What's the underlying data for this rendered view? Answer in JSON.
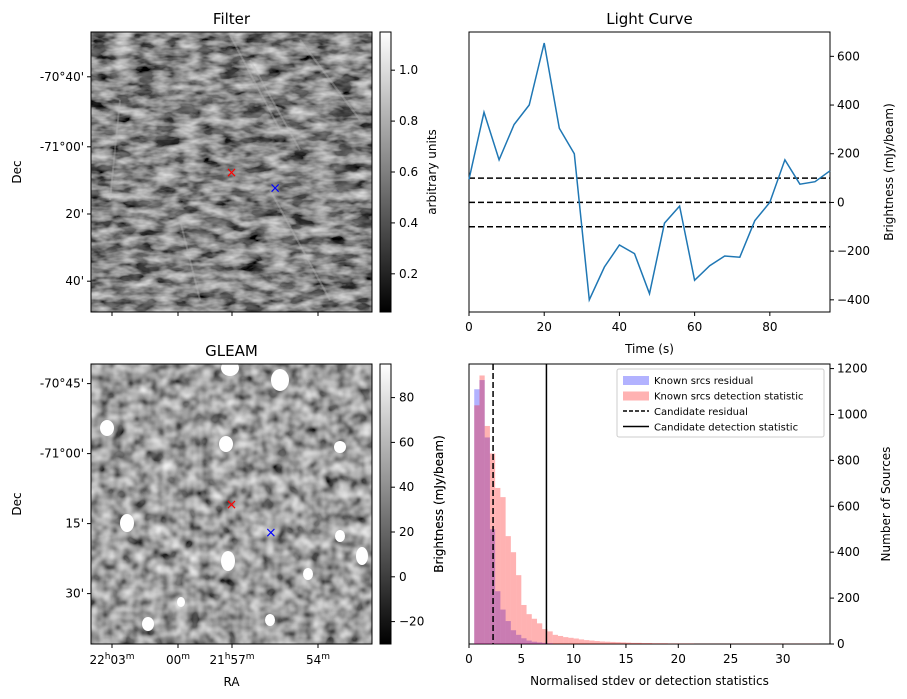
{
  "chart_data": [
    {
      "type": "heatmap",
      "title": "Filter",
      "ylabel": "Dec",
      "y_ticks": [
        "-70°40'",
        "-71°00'",
        "20'",
        "40'"
      ],
      "colorbar": {
        "label": "arbitrary units",
        "ticks": [
          "0.2",
          "0.4",
          "0.6",
          "0.8",
          "1.0"
        ],
        "range": [
          0.05,
          1.15
        ],
        "colormap": "gray"
      },
      "markers": [
        {
          "label": "×",
          "color": "#ff0000",
          "x": 0.5,
          "y": 0.5
        },
        {
          "label": "×",
          "color": "#0000ff",
          "x": 0.655,
          "y": 0.555
        }
      ]
    },
    {
      "type": "line",
      "title": "Light Curve",
      "xlabel": "Time (s)",
      "ylabel": "Brightness (mJy/beam)",
      "xlim": [
        0,
        96
      ],
      "ylim": [
        -450,
        700
      ],
      "x_ticks": [
        0,
        20,
        40,
        60,
        80
      ],
      "y_ticks": [
        -400,
        -200,
        0,
        200,
        400,
        600
      ],
      "x_tick_labels": [
        "0",
        "20",
        "40",
        "60",
        "80"
      ],
      "y_tick_labels": [
        "−400",
        "−200",
        "0",
        "200",
        "400",
        "600"
      ],
      "series": [
        {
          "color": "#1f77b4",
          "x": [
            0,
            4,
            8,
            12,
            16,
            20,
            24,
            28,
            32,
            36,
            40,
            44,
            48,
            52,
            56,
            60,
            64,
            68,
            72,
            76,
            80,
            84,
            88,
            92,
            96
          ],
          "values": [
            95,
            370,
            175,
            320,
            400,
            655,
            305,
            200,
            -400,
            -265,
            -175,
            -210,
            -375,
            -85,
            -15,
            -320,
            -260,
            -220,
            -225,
            -75,
            0,
            175,
            75,
            85,
            130
          ]
        }
      ],
      "hlines": [
        {
          "y": 100,
          "style": "dashed",
          "color": "#000000"
        },
        {
          "y": 0,
          "style": "dashed",
          "color": "#000000"
        },
        {
          "y": -100,
          "style": "dashed",
          "color": "#000000"
        }
      ]
    },
    {
      "type": "heatmap",
      "title": "GLEAM",
      "xlabel": "RA",
      "ylabel": "Dec",
      "y_ticks": [
        "-70°45'",
        "-71°00'",
        "15'",
        "30'"
      ],
      "x_ticks": [
        {
          "main": "22",
          "sup1": "h",
          "rest": "03",
          "sup2": "m"
        },
        {
          "main": "00",
          "sup1": "m",
          "rest": "",
          "sup2": ""
        },
        {
          "main": "21",
          "sup1": "h",
          "rest": "57",
          "sup2": "m"
        },
        {
          "main": "54",
          "sup1": "m",
          "rest": "",
          "sup2": ""
        }
      ],
      "colorbar": {
        "label": "Brightness (mJy/beam)",
        "ticks": [
          "−20",
          "0",
          "20",
          "40",
          "60",
          "80"
        ],
        "range": [
          -30,
          95
        ],
        "colormap": "gray"
      },
      "markers": [
        {
          "label": "×",
          "color": "#ff0000",
          "x": 0.5,
          "y": 0.5
        },
        {
          "label": "×",
          "color": "#0000ff",
          "x": 0.64,
          "y": 0.6
        }
      ]
    },
    {
      "type": "bar",
      "title": "",
      "xlabel": "Normalised stdev or detection statistics",
      "ylabel": "Number of Sources",
      "xlim": [
        0,
        34.5
      ],
      "ylim": [
        0,
        1220
      ],
      "x_ticks": [
        0,
        5,
        10,
        15,
        20,
        25,
        30
      ],
      "y_ticks": [
        0,
        200,
        400,
        600,
        800,
        1000,
        1200
      ],
      "x_tick_labels": [
        "0",
        "5",
        "10",
        "15",
        "20",
        "25",
        "30"
      ],
      "y_tick_labels": [
        "0",
        "200",
        "400",
        "600",
        "800",
        "1000",
        "1200"
      ],
      "bin_width": 0.5,
      "series": [
        {
          "name": "Known srcs residual",
          "color": "#0000ff",
          "opacity": 0.3,
          "start": 0.5,
          "values": [
            1110,
            1150,
            900,
            500,
            230,
            150,
            100,
            60,
            40,
            25,
            15,
            10,
            7,
            5,
            3
          ]
        },
        {
          "name": "Known srcs detection statistic",
          "color": "#ff0000",
          "opacity": 0.3,
          "start": 0.5,
          "values": [
            1040,
            1170,
            950,
            830,
            680,
            640,
            470,
            400,
            300,
            170,
            130,
            110,
            90,
            65,
            55,
            40,
            35,
            30,
            27,
            24,
            20,
            17,
            15,
            13,
            11,
            10,
            9,
            8,
            7,
            6,
            5,
            5,
            4,
            4,
            3,
            3,
            3,
            2,
            2,
            2,
            2,
            2,
            1,
            1,
            1,
            1,
            1,
            1,
            1,
            1,
            1,
            1,
            1,
            1,
            1,
            1,
            1,
            1,
            1,
            1,
            1,
            1,
            1,
            1,
            1,
            1
          ]
        }
      ],
      "vlines": [
        {
          "name": "Candidate residual",
          "x": 2.3,
          "style": "dashed",
          "color": "#000000"
        },
        {
          "name": "Candidate detection statistic",
          "x": 7.4,
          "style": "solid",
          "color": "#000000"
        }
      ],
      "legend_position": "top-right",
      "left_axis_label": "Brightness (mJy/beam)"
    }
  ]
}
